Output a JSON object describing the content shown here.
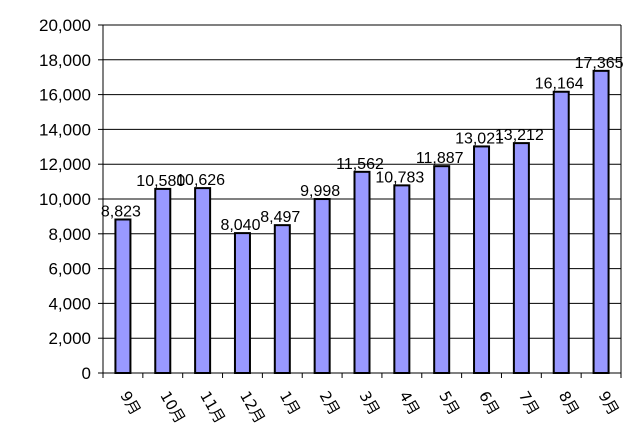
{
  "chart_data": {
    "type": "bar",
    "categories": [
      "9月",
      "10月",
      "11月",
      "12月",
      "1月",
      "2月",
      "3月",
      "4月",
      "5月",
      "6月",
      "7月",
      "8月",
      "9月"
    ],
    "values": [
      8823,
      10580,
      10626,
      8040,
      8497,
      9998,
      11562,
      10783,
      11887,
      13021,
      13212,
      16164,
      17365
    ],
    "value_labels": [
      "8,823",
      "10,580",
      "10,626",
      "8,040",
      "8,497",
      "9,998",
      "11,562",
      "10,783",
      "11,887",
      "13,021",
      "13,212",
      "16,164",
      "17,365"
    ],
    "y_ticks": [
      0,
      2000,
      4000,
      6000,
      8000,
      10000,
      12000,
      14000,
      16000,
      18000,
      20000
    ],
    "y_tick_labels": [
      "0",
      "2,000",
      "4,000",
      "6,000",
      "8,000",
      "10,000",
      "12,000",
      "14,000",
      "16,000",
      "18,000",
      "20,000"
    ],
    "ylim": [
      0,
      20000
    ],
    "grid": true,
    "bar_color": "#9999ff",
    "bar_edge_color": "#000000"
  }
}
